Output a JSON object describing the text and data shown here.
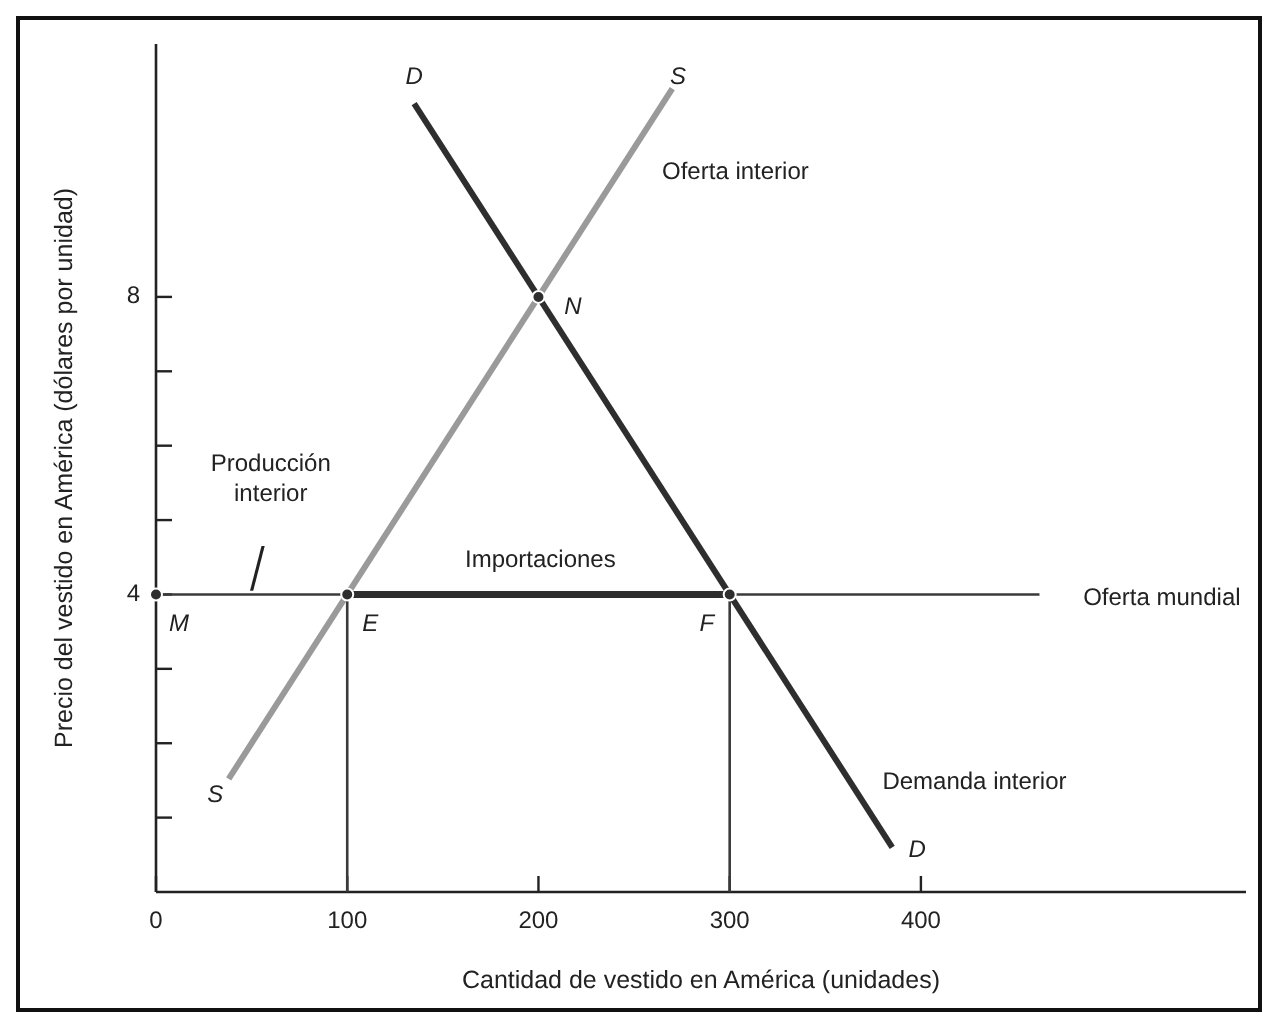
{
  "chart_data": {
    "type": "line",
    "xlabel": "Cantidad de vestido en América (unidades)",
    "ylabel": "Precio del vestido en América (dólares por unidad)",
    "xlim": [
      0,
      570
    ],
    "ylim": [
      0,
      11.4
    ],
    "xticks": [
      0,
      100,
      200,
      300,
      400
    ],
    "yticks": [
      {
        "value": 1,
        "label": null
      },
      {
        "value": 2,
        "label": null
      },
      {
        "value": 3,
        "label": null
      },
      4,
      {
        "value": 5,
        "label": null
      },
      {
        "value": 6,
        "label": null
      },
      {
        "value": 7,
        "label": null
      },
      8
    ],
    "series": [
      {
        "color": "#9a9a9a",
        "x": [
          38,
          270
        ],
        "values": [
          1.52,
          10.8
        ]
      },
      {
        "color": "#2e2e2e",
        "x": [
          135,
          385
        ],
        "values": [
          10.6,
          0.6
        ]
      },
      {
        "color": "#3a3a3a",
        "x": [
          0,
          462
        ],
        "values": [
          4,
          4
        ]
      },
      {
        "color": "#2e2e2e",
        "x": [
          100,
          300
        ],
        "values": [
          4,
          4
        ]
      },
      {
        "color": "#3a3a3a",
        "x": [
          100,
          100
        ],
        "values": [
          0,
          4
        ]
      },
      {
        "color": "#3a3a3a",
        "x": [
          300,
          300
        ],
        "values": [
          0,
          4
        ]
      },
      {
        "type": "scatter",
        "color": "#2e2e2e",
        "marker": "circle",
        "x": [
          0,
          100,
          300,
          200
        ],
        "values": [
          4,
          4,
          4,
          8
        ]
      }
    ],
    "annotations": [
      "Oferta interior",
      "Producción interior",
      "Importaciones",
      "Oferta mundial",
      "Demanda interior",
      "D",
      "S",
      "N",
      "M",
      "E",
      "F",
      "S",
      "D"
    ]
  }
}
